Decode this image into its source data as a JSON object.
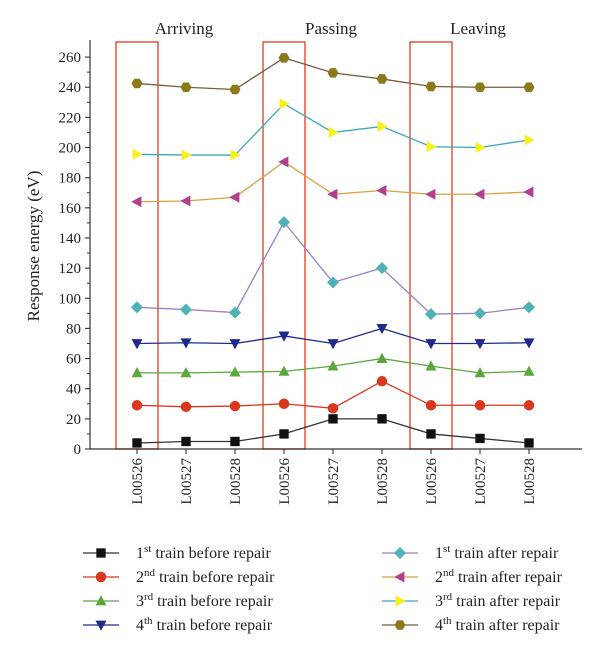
{
  "chart_data": {
    "type": "line",
    "title": "",
    "xlabel": "",
    "ylabel": "Response energy (eV)",
    "ylim": [
      0,
      270
    ],
    "yticks": [
      0,
      20,
      40,
      60,
      80,
      100,
      120,
      140,
      160,
      180,
      200,
      220,
      240,
      260
    ],
    "categories": [
      "L00526",
      "L00527",
      "L00528",
      "L00526",
      "L00527",
      "L00528",
      "L00526",
      "L00527",
      "L00528"
    ],
    "sections": [
      {
        "label": "Arriving",
        "highlight_index": 0
      },
      {
        "label": "Passing",
        "highlight_index": 3
      },
      {
        "label": "Leaving",
        "highlight_index": 6
      }
    ],
    "highlight_color": "#e04a2a",
    "series": [
      {
        "ord": "1",
        "suffix": "st",
        "rest": " train before repair",
        "marker": "square",
        "marker_color": "#111111",
        "line_color": "#333333",
        "values": [
          4,
          5,
          5,
          10,
          20,
          20,
          10,
          7,
          4
        ]
      },
      {
        "ord": "2",
        "suffix": "nd",
        "rest": " train before repair",
        "marker": "circle",
        "marker_color": "#d9381e",
        "line_color": "#d9381e",
        "values": [
          29,
          28,
          28.5,
          30,
          27,
          45,
          29,
          29,
          29
        ]
      },
      {
        "ord": "3",
        "suffix": "rd",
        "rest": " train before repair",
        "marker": "triangle-up",
        "marker_color": "#5aa83c",
        "line_color": "#5aa83c",
        "values": [
          50.5,
          50.5,
          51,
          51.5,
          55,
          60,
          55,
          50.5,
          51.5
        ]
      },
      {
        "ord": "4",
        "suffix": "th",
        "rest": " train before repair",
        "marker": "triangle-down",
        "marker_color": "#1f2a8c",
        "line_color": "#1f2a8c",
        "values": [
          70,
          70.5,
          70,
          75,
          70,
          80,
          70,
          70,
          70.5
        ]
      },
      {
        "ord": "1",
        "suffix": "st",
        "rest": " train after repair",
        "marker": "diamond",
        "marker_color": "#4fb3b5",
        "line_color": "#9b7fc4",
        "values": [
          94,
          92.5,
          90.5,
          150.5,
          110.5,
          120,
          89.5,
          90,
          94
        ]
      },
      {
        "ord": "2",
        "suffix": "nd",
        "rest": " train after repair",
        "marker": "triangle-left",
        "marker_color": "#b0408e",
        "line_color": "#d8a040",
        "values": [
          164,
          164.5,
          167,
          190.5,
          169,
          171.5,
          169,
          169,
          170.5
        ]
      },
      {
        "ord": "3",
        "suffix": "rd",
        "rest": " train after repair",
        "marker": "triangle-right",
        "marker_color": "#f7f01a",
        "line_color": "#3aa8b8",
        "values": [
          195.5,
          195,
          195,
          229,
          210,
          214,
          200.5,
          200,
          205
        ]
      },
      {
        "ord": "4",
        "suffix": "th",
        "rest": " train after repair",
        "marker": "hexagon",
        "marker_color": "#8a7a1a",
        "line_color": "#7a5c40",
        "values": [
          242.5,
          240,
          238.5,
          259.5,
          249.5,
          245.5,
          240.5,
          240,
          240
        ]
      }
    ],
    "grid": false,
    "legend": "bottom, two columns"
  }
}
